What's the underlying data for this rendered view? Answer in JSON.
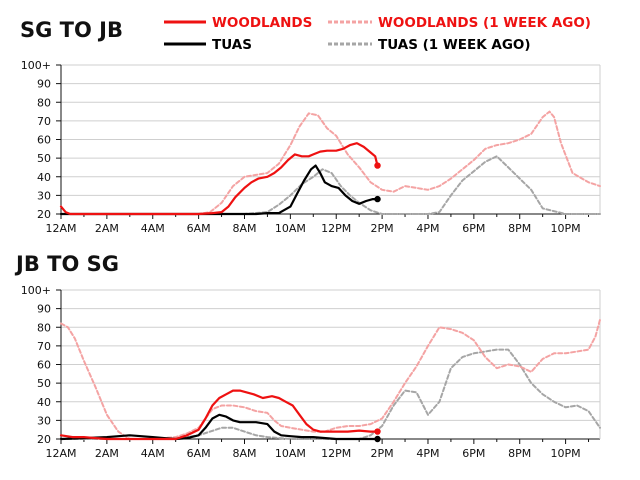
{
  "legend": {
    "woodlands": "WOODLANDS",
    "woodlands_prev": "WOODLANDS (1 WEEK AGO)",
    "tuas": "TUAS",
    "tuas_prev": "TUAS (1 WEEK AGO)"
  },
  "colors": {
    "woodlands": "#ee1111",
    "woodlands_prev": "#f4a3a3",
    "tuas": "#000000",
    "tuas_prev": "#a6a6a6",
    "grid": "#cfcfcf"
  },
  "chart_data": [
    {
      "type": "line",
      "title": "SG TO JB",
      "x_unit": "hour of day",
      "xlim": [
        0,
        23.5
      ],
      "ylim": [
        20,
        100
      ],
      "x_ticks": [
        0,
        2,
        4,
        6,
        8,
        10,
        12,
        14,
        16,
        18,
        20,
        22
      ],
      "x_tick_labels": [
        "12AM",
        "2AM",
        "4AM",
        "6AM",
        "8AM",
        "10AM",
        "12PM",
        "2PM",
        "4PM",
        "6PM",
        "8PM",
        "10PM"
      ],
      "y_ticks": [
        20,
        30,
        40,
        50,
        60,
        70,
        80,
        90,
        100
      ],
      "y_tick_labels": [
        "20",
        "30",
        "40",
        "50",
        "60",
        "70",
        "80",
        "90",
        "100+"
      ],
      "grid": true,
      "series": [
        {
          "name": "WOODLANDS",
          "style": "solid",
          "end_marker": true,
          "x": [
            0,
            0.2,
            0.4,
            1,
            2,
            3,
            4,
            5,
            6,
            6.6,
            7,
            7.3,
            7.6,
            8,
            8.3,
            8.6,
            9,
            9.3,
            9.6,
            9.9,
            10.2,
            10.5,
            10.8,
            11,
            11.3,
            11.6,
            12,
            12.3,
            12.6,
            12.9,
            13.2,
            13.5,
            13.7,
            13.8
          ],
          "y": [
            24,
            21,
            20,
            20,
            20,
            20,
            20,
            20,
            20,
            20.5,
            21,
            24,
            29,
            34,
            37,
            39,
            40,
            42,
            45,
            49,
            52,
            51,
            51,
            52,
            53.5,
            54,
            54,
            55,
            57,
            58,
            56,
            53,
            51,
            46
          ]
        },
        {
          "name": "TUAS",
          "style": "solid",
          "end_marker": true,
          "x": [
            0,
            4,
            6,
            7,
            7.5,
            8,
            8.5,
            9,
            9.5,
            10,
            10.3,
            10.6,
            10.9,
            11.1,
            11.3,
            11.5,
            11.8,
            12.1,
            12.4,
            12.7,
            13,
            13.3,
            13.6,
            13.8
          ],
          "y": [
            20,
            20,
            20,
            20,
            20,
            20,
            20,
            20.5,
            20.5,
            24,
            31,
            38,
            44,
            46,
            42,
            37,
            35,
            34,
            30,
            27,
            25.5,
            27,
            28,
            28
          ]
        },
        {
          "name": "WOODLANDS (1 WEEK AGO)",
          "style": "dashed",
          "x": [
            0,
            6,
            6.5,
            7,
            7.5,
            8,
            8.5,
            9,
            9.5,
            10,
            10.4,
            10.8,
            11.2,
            11.6,
            12,
            12.5,
            13,
            13.5,
            14,
            14.5,
            15,
            16,
            16.5,
            17,
            17.5,
            18,
            18.5,
            19,
            19.5,
            20,
            20.5,
            21,
            21.3,
            21.5,
            21.8,
            22.3,
            23,
            23.5
          ],
          "y": [
            20,
            20,
            21,
            26,
            35,
            40,
            41,
            42,
            47,
            57,
            67,
            74,
            73,
            66,
            62,
            52,
            45,
            37,
            33,
            32,
            35,
            33,
            35,
            39,
            44,
            49,
            55,
            57,
            58,
            60,
            63,
            72,
            75,
            72,
            58,
            42,
            37,
            35
          ]
        },
        {
          "name": "TUAS (1 WEEK AGO)",
          "style": "dashed",
          "x": [
            0,
            8,
            9,
            9.5,
            10,
            10.5,
            11,
            11.4,
            11.8,
            12.2,
            12.6,
            13,
            13.5,
            14,
            15,
            16,
            16.5,
            17,
            17.5,
            18,
            18.5,
            19,
            19.5,
            20,
            20.5,
            21,
            22,
            23.5
          ],
          "y": [
            20,
            20,
            21,
            25,
            30,
            36,
            40,
            44,
            42,
            35,
            30,
            26,
            22,
            20,
            20,
            20,
            21,
            30,
            38,
            43,
            48,
            51,
            45,
            39,
            33,
            23,
            20,
            20
          ]
        }
      ]
    },
    {
      "type": "line",
      "title": "JB TO SG",
      "x_unit": "hour of day",
      "xlim": [
        0,
        23.5
      ],
      "ylim": [
        20,
        100
      ],
      "x_ticks": [
        0,
        2,
        4,
        6,
        8,
        10,
        12,
        14,
        16,
        18,
        20,
        22
      ],
      "x_tick_labels": [
        "12AM",
        "2AM",
        "4AM",
        "6AM",
        "8AM",
        "10AM",
        "12PM",
        "2PM",
        "4PM",
        "6PM",
        "8PM",
        "10PM"
      ],
      "y_ticks": [
        20,
        30,
        40,
        50,
        60,
        70,
        80,
        90,
        100
      ],
      "y_tick_labels": [
        "20",
        "30",
        "40",
        "50",
        "60",
        "70",
        "80",
        "90",
        "100+"
      ],
      "grid": true,
      "series": [
        {
          "name": "WOODLANDS",
          "style": "solid",
          "end_marker": true,
          "x": [
            0,
            0.5,
            1,
            1.5,
            2,
            3,
            4,
            5,
            5.5,
            6,
            6.3,
            6.6,
            6.9,
            7.2,
            7.5,
            7.8,
            8.1,
            8.4,
            8.8,
            9.2,
            9.5,
            9.8,
            10.1,
            10.4,
            10.7,
            11,
            11.3,
            11.6,
            12,
            12.5,
            13,
            13.5,
            13.8
          ],
          "y": [
            22,
            21,
            21,
            20.5,
            20,
            20,
            20,
            20,
            22,
            25,
            31,
            38,
            42,
            44,
            46,
            46,
            45,
            44,
            42,
            43,
            42,
            40,
            38,
            33,
            28,
            25,
            24,
            24,
            24,
            24,
            24.5,
            24,
            24
          ]
        },
        {
          "name": "TUAS",
          "style": "solid",
          "end_marker": true,
          "x": [
            0,
            1,
            2,
            2.5,
            3,
            3.5,
            4,
            4.5,
            5,
            5.5,
            6,
            6.3,
            6.6,
            6.9,
            7.2,
            7.5,
            7.8,
            8.1,
            8.5,
            9,
            9.3,
            9.6,
            10,
            10.5,
            11,
            12,
            13,
            13.8
          ],
          "y": [
            20,
            20.5,
            21,
            21.5,
            22,
            21.5,
            21,
            20.5,
            20,
            20.5,
            22,
            26,
            31,
            33,
            32,
            30,
            29,
            29,
            29,
            28,
            24,
            22,
            21.5,
            21,
            21,
            20,
            20,
            20
          ]
        },
        {
          "name": "WOODLANDS (1 WEEK AGO)",
          "style": "dashed",
          "x": [
            0,
            0.3,
            0.6,
            1,
            1.5,
            2,
            2.5,
            3,
            4,
            5,
            5.5,
            6,
            6.3,
            6.6,
            7,
            7.5,
            8,
            8.5,
            9,
            9.3,
            9.6,
            10,
            10.5,
            11,
            11.5,
            12,
            12.5,
            13,
            13.5,
            14,
            14.5,
            15,
            15.5,
            16,
            16.5,
            17,
            17.5,
            18,
            18.5,
            19,
            19.5,
            20,
            20.5,
            21,
            21.5,
            22,
            22.5,
            23,
            23.3,
            23.5
          ],
          "y": [
            82,
            80,
            74,
            62,
            48,
            33,
            24,
            20,
            20,
            21,
            23,
            26,
            31,
            36,
            38,
            38,
            37,
            35,
            34,
            30,
            27,
            26,
            25,
            24,
            24,
            26,
            27,
            27,
            28,
            31,
            40,
            50,
            59,
            70,
            80,
            79,
            77,
            73,
            64,
            58,
            60,
            59,
            56,
            63,
            66,
            66,
            67,
            68,
            75,
            84
          ]
        },
        {
          "name": "TUAS (1 WEEK AGO)",
          "style": "dashed",
          "x": [
            0,
            5,
            5.5,
            6,
            6.5,
            7,
            7.5,
            8,
            8.5,
            9,
            10,
            11,
            12,
            13,
            13.5,
            14,
            14.5,
            15,
            15.5,
            16,
            16.5,
            17,
            17.5,
            18,
            18.5,
            19,
            19.5,
            20,
            20.5,
            21,
            21.5,
            22,
            22.5,
            23,
            23.5
          ],
          "y": [
            20,
            20,
            21,
            22,
            24,
            26,
            26,
            24,
            22,
            21,
            20,
            20,
            20,
            20,
            22,
            27,
            38,
            46,
            45,
            33,
            40,
            58,
            64,
            66,
            67,
            68,
            68,
            60,
            50,
            44,
            40,
            37,
            38,
            35,
            26
          ]
        }
      ]
    }
  ]
}
